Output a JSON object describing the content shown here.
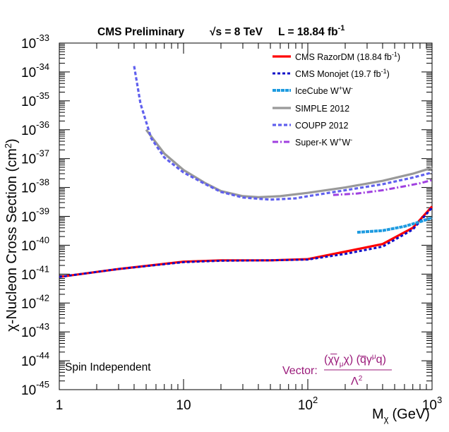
{
  "chart_data": {
    "type": "line",
    "title": "CMS Preliminary",
    "title_energy": "√s = 8 TeV",
    "title_lumi": "L = 18.84 fb",
    "title_lumi_exp": "-1",
    "xlabel": "M",
    "xlabel_sub": "χ",
    "xlabel_unit": "(GeV)",
    "ylabel": "χ-Nucleon Cross Section (cm",
    "ylabel_exp": "2",
    "ylabel_close": ")",
    "xscale": "log",
    "yscale": "log",
    "xlim": [
      1,
      1000
    ],
    "ylim": [
      1e-45,
      1e-33
    ],
    "x_ticks": [
      {
        "value": 1,
        "base": "1",
        "exp": ""
      },
      {
        "value": 10,
        "base": "10",
        "exp": ""
      },
      {
        "value": 100,
        "base": "10",
        "exp": "2"
      },
      {
        "value": 1000,
        "base": "10",
        "exp": "3"
      }
    ],
    "y_ticks": [
      {
        "value": 1e-45,
        "base": "10",
        "exp": "-45"
      },
      {
        "value": 1e-44,
        "base": "10",
        "exp": "-44"
      },
      {
        "value": 1e-43,
        "base": "10",
        "exp": "-43"
      },
      {
        "value": 1e-42,
        "base": "10",
        "exp": "-42"
      },
      {
        "value": 1e-41,
        "base": "10",
        "exp": "-41"
      },
      {
        "value": 1e-40,
        "base": "10",
        "exp": "-40"
      },
      {
        "value": 1e-39,
        "base": "10",
        "exp": "-39"
      },
      {
        "value": 1e-38,
        "base": "10",
        "exp": "-38"
      },
      {
        "value": 1e-37,
        "base": "10",
        "exp": "-37"
      },
      {
        "value": 1e-36,
        "base": "10",
        "exp": "-36"
      },
      {
        "value": 1e-35,
        "base": "10",
        "exp": "-35"
      },
      {
        "value": 1e-34,
        "base": "10",
        "exp": "-34"
      },
      {
        "value": 1e-33,
        "base": "10",
        "exp": "-33"
      }
    ],
    "grid": false,
    "legend_position": "top-right",
    "series": [
      {
        "name": "CMS RazorDM (18.84 fb",
        "name_exp": "-1",
        "name_close": ")",
        "color": "#ff0000",
        "dash": "",
        "width": 3.2,
        "x": [
          1,
          3,
          10,
          20,
          50,
          100,
          200,
          400,
          700,
          1000
        ],
        "y": [
          8e-42,
          1.5e-41,
          2.7e-41,
          3e-41,
          3e-41,
          3.3e-41,
          6e-41,
          1.1e-40,
          4e-40,
          2.2e-39
        ]
      },
      {
        "name": "CMS Monojet (19.7 fb",
        "name_exp": "-1",
        "name_close": ")",
        "color": "#1010c8",
        "dash": "4,3",
        "width": 3,
        "x": [
          1,
          3,
          10,
          20,
          50,
          100,
          200,
          400,
          700,
          1000
        ],
        "y": [
          8e-42,
          1.5e-41,
          2.6e-41,
          2.9e-41,
          3e-41,
          3.2e-41,
          5e-41,
          9e-41,
          3.5e-40,
          2e-39
        ]
      },
      {
        "name": "IceCube W",
        "name_sup1": "+",
        "name_mid": "W",
        "name_sup2": "-",
        "color": "#1e9be0",
        "dash": "5,1",
        "width": 4,
        "x": [
          250,
          400,
          600,
          800,
          1000
        ],
        "y": [
          2.8e-40,
          3.2e-40,
          4.5e-40,
          6.5e-40,
          9e-40
        ]
      },
      {
        "name": "SIMPLE 2012",
        "color": "#999999",
        "dash": "",
        "width": 3.2,
        "x": [
          5,
          7,
          10,
          15,
          20,
          30,
          40,
          60,
          100,
          200,
          400,
          700,
          1000
        ],
        "y": [
          1e-36,
          1.5e-37,
          4e-38,
          1.4e-38,
          7.5e-39,
          5e-39,
          4.6e-39,
          5e-39,
          6.5e-39,
          1e-38,
          1.7e-38,
          3e-38,
          4.8e-38
        ]
      },
      {
        "name": "COUPP 2012",
        "color": "#6060ee",
        "dash": "5,3",
        "width": 3.2,
        "x": [
          4,
          4.5,
          5.5,
          7,
          10,
          15,
          20,
          30,
          50,
          80,
          100,
          200,
          400,
          700,
          1000
        ],
        "y": [
          1.6e-34,
          8e-36,
          5e-37,
          1.1e-37,
          3.3e-38,
          1.3e-38,
          7e-39,
          4.5e-39,
          3.8e-39,
          4.2e-39,
          5e-39,
          8e-39,
          1.3e-38,
          2.2e-38,
          3.3e-38
        ]
      },
      {
        "name": "Super-K W",
        "name_sup1": "+",
        "name_mid": "W",
        "name_sup2": "-",
        "color": "#a040e0",
        "dash": "8,3,2,3",
        "width": 3,
        "x": [
          160,
          250,
          400,
          600,
          800,
          1000
        ],
        "y": [
          5.5e-39,
          6.2e-39,
          8e-39,
          1.1e-38,
          1.4e-38,
          1.8e-38
        ]
      }
    ],
    "annotations": {
      "spin": "Spin Independent",
      "vector_label": "Vector:",
      "vector_num_1": "(χ̅γ",
      "vector_num_sub": "μ",
      "vector_num_2": "χ) (q̅γ",
      "vector_num_sup": "μ",
      "vector_num_3": "q)",
      "vector_den": "Λ",
      "vector_den_exp": "2"
    }
  }
}
